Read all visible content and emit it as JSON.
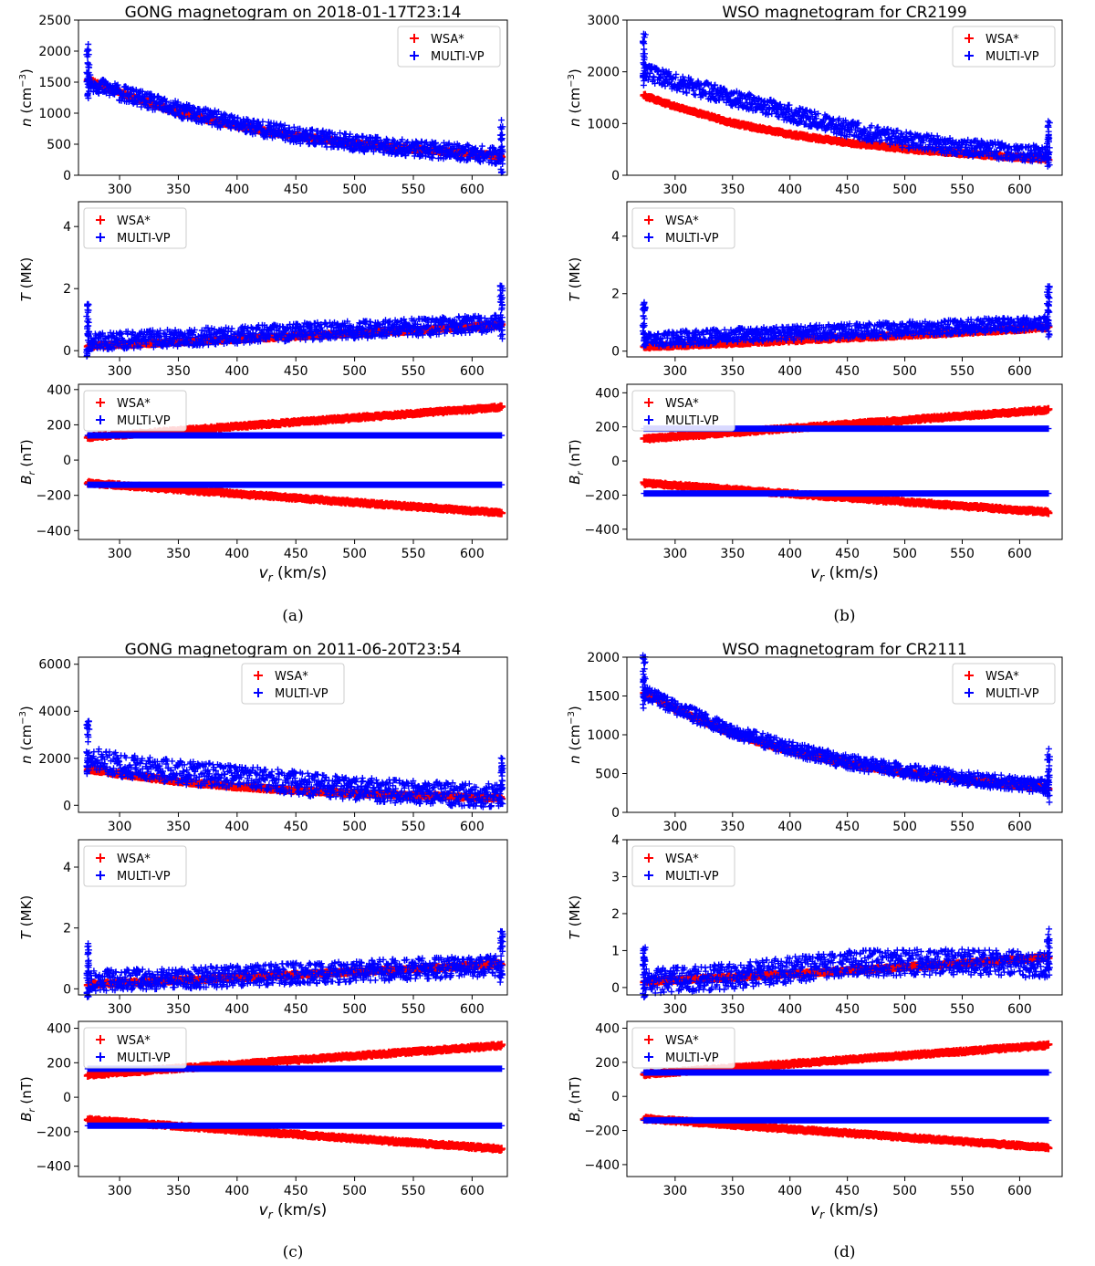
{
  "figure": {
    "captions": [
      "(a)",
      "(b)",
      "(c)",
      "(d)"
    ],
    "legend_labels": [
      "WSA*",
      "MULTI-VP"
    ],
    "colors": {
      "wsa": "#ff0000",
      "multivp": "#0000ff",
      "axis": "#000000"
    }
  },
  "chart_data": [
    {
      "id": "a",
      "type": "scatter",
      "title": "GONG magnetogram on 2018-01-17T23:14",
      "xlabel": "v_r (km/s)",
      "xlim": [
        265,
        630
      ],
      "xticks": [
        300,
        350,
        400,
        450,
        500,
        550,
        600
      ],
      "panels": [
        {
          "quantity": "n",
          "ylabel": "n (cm^-3)",
          "ylim": [
            0,
            2500
          ],
          "yticks": [
            0,
            500,
            1000,
            1500,
            2000,
            2500
          ],
          "legend": "top-right",
          "series": [
            {
              "name": "WSA*",
              "color": "#ff0000",
              "x": [
                273,
                300,
                350,
                400,
                450,
                500,
                550,
                600,
                625
              ],
              "y": [
                1540,
                1330,
                1010,
                790,
                630,
                510,
                420,
                345,
                310
              ]
            },
            {
              "name": "MULTI-VP",
              "color": "#0000ff",
              "x": [
                273,
                300,
                350,
                400,
                450,
                500,
                550,
                600,
                625
              ],
              "y": [
                1500,
                1330,
                1050,
                830,
                650,
                520,
                430,
                360,
                300
              ],
              "spread": 130
            }
          ]
        },
        {
          "quantity": "T",
          "ylabel": "T (MK)",
          "ylim": [
            -0.2,
            4.8
          ],
          "yticks": [
            0,
            2,
            4
          ],
          "legend": "top-left",
          "series": [
            {
              "name": "WSA*",
              "color": "#ff0000",
              "x": [
                273,
                350,
                450,
                550,
                625
              ],
              "y": [
                0.15,
                0.28,
                0.46,
                0.65,
                0.82
              ]
            },
            {
              "name": "MULTI-VP",
              "color": "#0000ff",
              "x": [
                273,
                350,
                450,
                550,
                625
              ],
              "y": [
                0.3,
                0.42,
                0.6,
                0.75,
                0.9
              ],
              "spread": 0.28
            }
          ]
        },
        {
          "quantity": "Br",
          "ylabel": "B_r (nT)",
          "ylim": [
            -450,
            430
          ],
          "yticks": [
            -400,
            -200,
            0,
            200,
            400
          ],
          "legend": "top-left",
          "series": [
            {
              "name": "WSA*",
              "color": "#ff0000",
              "x": [
                273,
                625
              ],
              "y": [
                130,
                300
              ]
            },
            {
              "name": "WSA*",
              "color": "#ff0000",
              "x": [
                273,
                625
              ],
              "y": [
                -130,
                -300
              ]
            },
            {
              "name": "MULTI-VP",
              "color": "#0000ff",
              "x": [
                273,
                625
              ],
              "y": [
                140,
                140
              ]
            },
            {
              "name": "MULTI-VP",
              "color": "#0000ff",
              "x": [
                273,
                625
              ],
              "y": [
                -140,
                -140
              ]
            }
          ]
        }
      ]
    },
    {
      "id": "b",
      "type": "scatter",
      "title": "WSO magnetogram for CR2199",
      "xlabel": "v_r  (km/s)",
      "xlim": [
        258,
        637
      ],
      "xticks": [
        300,
        350,
        400,
        450,
        500,
        550,
        600
      ],
      "panels": [
        {
          "quantity": "n",
          "ylabel": "n (cm^-3)",
          "ylim": [
            0,
            3000
          ],
          "yticks": [
            0,
            1000,
            2000,
            3000
          ],
          "legend": "top-right",
          "series": [
            {
              "name": "WSA*",
              "color": "#ff0000",
              "x": [
                273,
                300,
                350,
                400,
                450,
                500,
                550,
                600,
                625
              ],
              "y": [
                1540,
                1330,
                1010,
                790,
                630,
                510,
                420,
                345,
                310
              ]
            },
            {
              "name": "MULTI-VP",
              "color": "#0000ff",
              "x": [
                273,
                300,
                350,
                400,
                450,
                500,
                550,
                600,
                625
              ],
              "y": [
                2000,
                1800,
                1500,
                1200,
                900,
                680,
                540,
                440,
                400
              ],
              "spread": 160
            }
          ]
        },
        {
          "quantity": "T",
          "ylabel": "T (MK)",
          "ylim": [
            -0.2,
            5.2
          ],
          "yticks": [
            0,
            2,
            4
          ],
          "legend": "top-left",
          "series": [
            {
              "name": "WSA*",
              "color": "#ff0000",
              "x": [
                273,
                350,
                450,
                550,
                625
              ],
              "y": [
                0.15,
                0.28,
                0.46,
                0.65,
                0.82
              ]
            },
            {
              "name": "MULTI-VP",
              "color": "#0000ff",
              "x": [
                273,
                350,
                450,
                550,
                625
              ],
              "y": [
                0.4,
                0.55,
                0.7,
                0.85,
                1.0
              ],
              "spread": 0.25
            }
          ]
        },
        {
          "quantity": "Br",
          "ylabel": "B_r  (nT)",
          "ylim": [
            -460,
            450
          ],
          "yticks": [
            -400,
            -200,
            0,
            200,
            400
          ],
          "legend": "top-left",
          "series": [
            {
              "name": "WSA*",
              "color": "#ff0000",
              "x": [
                273,
                625
              ],
              "y": [
                130,
                300
              ]
            },
            {
              "name": "WSA*",
              "color": "#ff0000",
              "x": [
                273,
                625
              ],
              "y": [
                -130,
                -300
              ]
            },
            {
              "name": "MULTI-VP",
              "color": "#0000ff",
              "x": [
                273,
                625
              ],
              "y": [
                190,
                190
              ]
            },
            {
              "name": "MULTI-VP",
              "color": "#0000ff",
              "x": [
                273,
                625
              ],
              "y": [
                -190,
                -190
              ]
            }
          ]
        }
      ]
    },
    {
      "id": "c",
      "type": "scatter",
      "title": "GONG magnetogram on 2011-06-20T23:54",
      "xlabel": "v_r (km/s)",
      "xlim": [
        265,
        630
      ],
      "xticks": [
        300,
        350,
        400,
        450,
        500,
        550,
        600
      ],
      "panels": [
        {
          "quantity": "n",
          "ylabel": "n (cm^-3)",
          "ylim": [
            -300,
            6300
          ],
          "yticks": [
            0,
            2000,
            4000,
            6000
          ],
          "legend": "top-center",
          "series": [
            {
              "name": "WSA*",
              "color": "#ff0000",
              "x": [
                273,
                300,
                350,
                400,
                450,
                500,
                550,
                600,
                625
              ],
              "y": [
                1540,
                1330,
                1010,
                790,
                630,
                510,
                420,
                345,
                310
              ]
            },
            {
              "name": "MULTI-VP",
              "color": "#0000ff",
              "x": [
                273,
                300,
                350,
                400,
                450,
                500,
                550,
                600,
                625
              ],
              "y": [
                2000,
                1700,
                1400,
                1200,
                950,
                700,
                550,
                450,
                400
              ],
              "spread": 500
            }
          ]
        },
        {
          "quantity": "T",
          "ylabel": "T (MK)",
          "ylim": [
            -0.2,
            4.9
          ],
          "yticks": [
            0,
            2,
            4
          ],
          "legend": "top-left",
          "series": [
            {
              "name": "WSA*",
              "color": "#ff0000",
              "x": [
                273,
                350,
                450,
                550,
                625
              ],
              "y": [
                0.15,
                0.28,
                0.46,
                0.65,
                0.82
              ]
            },
            {
              "name": "MULTI-VP",
              "color": "#0000ff",
              "x": [
                273,
                350,
                450,
                550,
                625
              ],
              "y": [
                0.25,
                0.35,
                0.5,
                0.65,
                0.75
              ],
              "spread": 0.35
            }
          ]
        },
        {
          "quantity": "Br",
          "ylabel": "B_r  (nT)",
          "ylim": [
            -460,
            440
          ],
          "yticks": [
            -400,
            -200,
            0,
            200,
            400
          ],
          "legend": "top-left",
          "series": [
            {
              "name": "WSA*",
              "color": "#ff0000",
              "x": [
                273,
                625
              ],
              "y": [
                130,
                300
              ]
            },
            {
              "name": "WSA*",
              "color": "#ff0000",
              "x": [
                273,
                625
              ],
              "y": [
                -130,
                -300
              ]
            },
            {
              "name": "MULTI-VP",
              "color": "#0000ff",
              "x": [
                273,
                625
              ],
              "y": [
                165,
                165
              ]
            },
            {
              "name": "MULTI-VP",
              "color": "#0000ff",
              "x": [
                273,
                625
              ],
              "y": [
                -165,
                -165
              ]
            }
          ]
        }
      ]
    },
    {
      "id": "d",
      "type": "scatter",
      "title": "WSO magnetogram for CR2111",
      "xlabel": "v_r  (km/s)",
      "xlim": [
        258,
        637
      ],
      "xticks": [
        300,
        350,
        400,
        450,
        500,
        550,
        600
      ],
      "panels": [
        {
          "quantity": "n",
          "ylabel": "n (cm^-3)",
          "ylim": [
            0,
            2000
          ],
          "yticks": [
            0,
            500,
            1000,
            1500,
            2000
          ],
          "legend": "top-right",
          "series": [
            {
              "name": "WSA*",
              "color": "#ff0000",
              "x": [
                273,
                300,
                350,
                400,
                450,
                500,
                550,
                600,
                625
              ],
              "y": [
                1540,
                1330,
                1010,
                790,
                630,
                510,
                420,
                345,
                310
              ]
            },
            {
              "name": "MULTI-VP",
              "color": "#0000ff",
              "x": [
                273,
                300,
                350,
                400,
                450,
                500,
                550,
                600,
                625
              ],
              "y": [
                1550,
                1350,
                1050,
                820,
                650,
                540,
                440,
                370,
                330
              ],
              "spread": 90
            }
          ]
        },
        {
          "quantity": "T",
          "ylabel": "T (MK)",
          "ylim": [
            -0.2,
            4.0
          ],
          "yticks": [
            0,
            1,
            2,
            3,
            4
          ],
          "legend": "top-left",
          "series": [
            {
              "name": "WSA*",
              "color": "#ff0000",
              "x": [
                273,
                350,
                450,
                550,
                625
              ],
              "y": [
                0.15,
                0.28,
                0.46,
                0.65,
                0.82
              ]
            },
            {
              "name": "MULTI-VP",
              "color": "#0000ff",
              "x": [
                273,
                350,
                450,
                550,
                625
              ],
              "y": [
                0.15,
                0.3,
                0.65,
                0.7,
                0.6
              ],
              "spread": 0.35
            }
          ]
        },
        {
          "quantity": "Br",
          "ylabel": "B_r  (nT)",
          "ylim": [
            -470,
            440
          ],
          "yticks": [
            -400,
            -200,
            0,
            200,
            400
          ],
          "legend": "top-left",
          "series": [
            {
              "name": "WSA*",
              "color": "#ff0000",
              "x": [
                273,
                625
              ],
              "y": [
                130,
                300
              ]
            },
            {
              "name": "WSA*",
              "color": "#ff0000",
              "x": [
                273,
                625
              ],
              "y": [
                -130,
                -300
              ]
            },
            {
              "name": "MULTI-VP",
              "color": "#0000ff",
              "x": [
                273,
                625
              ],
              "y": [
                140,
                140
              ]
            },
            {
              "name": "MULTI-VP",
              "color": "#0000ff",
              "x": [
                273,
                625
              ],
              "y": [
                -140,
                -140
              ]
            }
          ]
        }
      ]
    }
  ]
}
